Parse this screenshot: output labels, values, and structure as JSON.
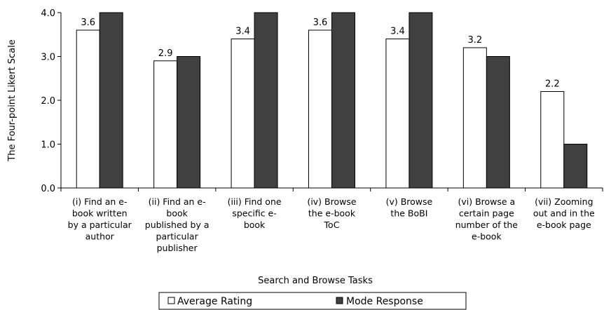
{
  "chart_data": {
    "type": "bar",
    "title": "",
    "xlabel": "Search and Browse Tasks",
    "ylabel": "The Four-point Likert Scale",
    "ylim": [
      0,
      4
    ],
    "yticks": [
      "0.0",
      "1.0",
      "2.0",
      "3.0",
      "4.0"
    ],
    "grid": false,
    "legend_position": "bottom",
    "categories": [
      [
        "(i) Find an e-",
        "book written",
        "by a particular",
        "author"
      ],
      [
        "(ii) Find an e-",
        "book",
        "published by a",
        "particular",
        "publisher"
      ],
      [
        "(iii) Find one",
        "specific e-",
        "book"
      ],
      [
        "(iv) Browse",
        "the e-book",
        "ToC"
      ],
      [
        "(v) Browse",
        "the BoBI"
      ],
      [
        "(vi) Browse a",
        "certain page",
        "number of the",
        "e-book"
      ],
      [
        "(vii) Zooming",
        "out and in the",
        "e-book page"
      ]
    ],
    "series": [
      {
        "name": "Average Rating",
        "color": "#ffffff",
        "values": [
          3.6,
          2.9,
          3.4,
          3.6,
          3.4,
          3.2,
          2.2
        ],
        "labels": [
          "3.6",
          "2.9",
          "3.4",
          "3.6",
          "3.4",
          "3.2",
          "2.2"
        ]
      },
      {
        "name": "Mode Response",
        "color": "#404040",
        "values": [
          4,
          3,
          4,
          4,
          4,
          3,
          1
        ]
      }
    ]
  }
}
